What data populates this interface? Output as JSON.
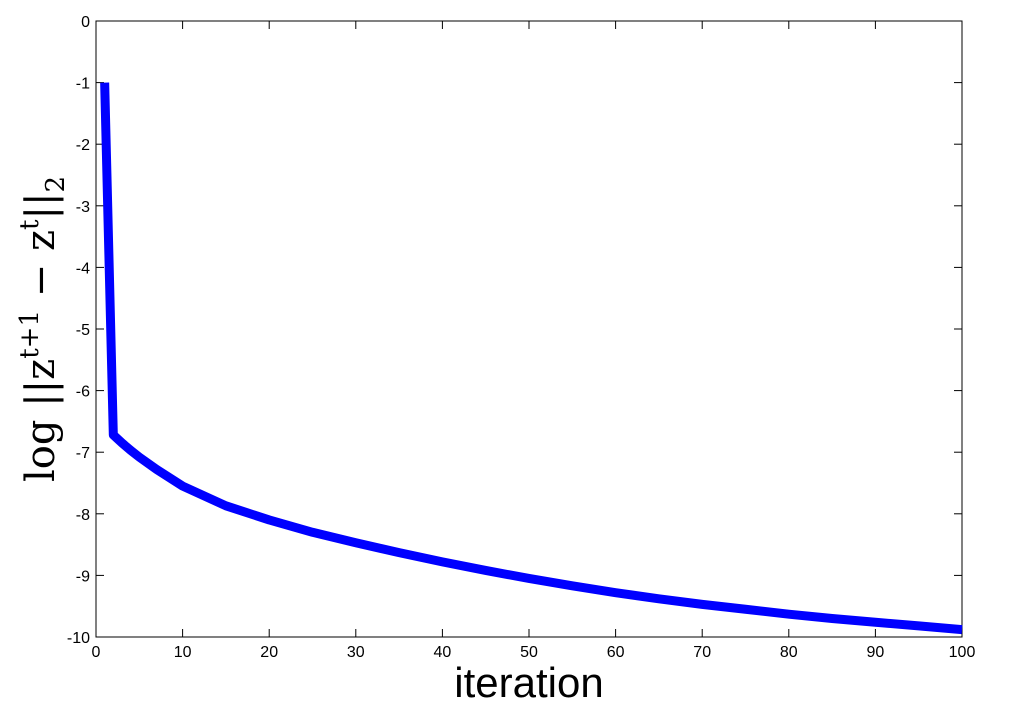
{
  "chart_data": {
    "type": "line",
    "xlabel": "iteration",
    "ylabel": [
      "log ||z",
      "t+1",
      " − z",
      "t",
      "||",
      "2"
    ],
    "x": [
      1,
      2,
      3,
      4,
      5,
      7,
      10,
      15,
      20,
      25,
      30,
      35,
      40,
      45,
      50,
      55,
      60,
      65,
      70,
      75,
      80,
      85,
      90,
      95,
      100
    ],
    "series": [
      {
        "color": "#0000ff",
        "values": [
          -1,
          -6.72,
          -6.85,
          -6.97,
          -7.08,
          -7.28,
          -7.55,
          -7.87,
          -8.1,
          -8.3,
          -8.47,
          -8.63,
          -8.78,
          -8.92,
          -9.05,
          -9.17,
          -9.28,
          -9.38,
          -9.47,
          -9.55,
          -9.63,
          -9.7,
          -9.76,
          -9.82,
          -9.88
        ]
      }
    ],
    "xlim": [
      0,
      100
    ],
    "xticks": [
      0,
      10,
      20,
      30,
      40,
      50,
      60,
      70,
      80,
      90,
      100
    ],
    "ylim": [
      -10,
      0
    ],
    "yticks": [
      -10,
      -9,
      -8,
      -7,
      -6,
      -5,
      -4,
      -3,
      -2,
      -1,
      0
    ],
    "grid": false
  }
}
